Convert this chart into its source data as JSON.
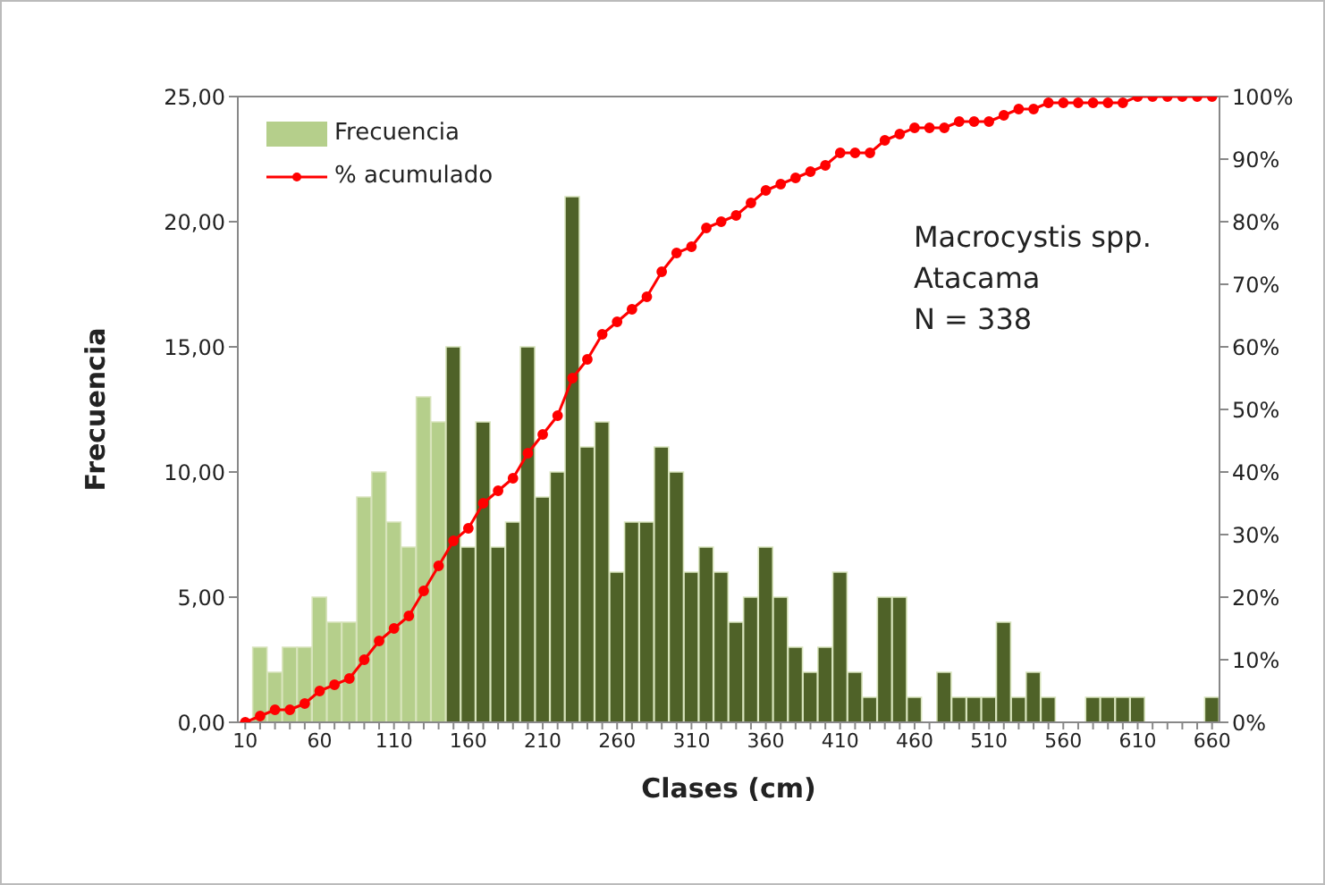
{
  "chart_data": {
    "type": "bar",
    "xlabel": "Clases (cm)",
    "ylabel": "Frecuencia",
    "categories": [
      "10",
      null,
      null,
      null,
      null,
      "60",
      null,
      null,
      null,
      null,
      "110",
      null,
      null,
      null,
      null,
      "160",
      null,
      null,
      null,
      null,
      "210",
      null,
      null,
      null,
      null,
      "260",
      null,
      null,
      null,
      null,
      "310",
      null,
      null,
      null,
      null,
      "360",
      null,
      null,
      null,
      null,
      "410",
      null,
      null,
      null,
      null,
      "460",
      null,
      null,
      null,
      null,
      "510",
      null,
      null,
      null,
      null,
      "560",
      null,
      null,
      null,
      null,
      "610",
      null,
      null,
      null,
      null,
      "660"
    ],
    "series": [
      {
        "name": "Frecuencia",
        "color": "#b5cf8b",
        "colors": [
          "#b5cf8b",
          "#b5cf8b",
          "#b5cf8b",
          "#b5cf8b",
          "#b5cf8b",
          "#b5cf8b",
          "#b5cf8b",
          "#b5cf8b",
          "#b5cf8b",
          "#b5cf8b",
          "#b5cf8b",
          "#b5cf8b",
          "#b5cf8b",
          "#b5cf8b",
          "#4f6228",
          "#4f6228",
          "#4f6228",
          "#4f6228",
          "#4f6228",
          "#4f6228",
          "#4f6228",
          "#4f6228",
          "#4f6228",
          "#4f6228",
          "#4f6228",
          "#4f6228",
          "#4f6228",
          "#4f6228",
          "#4f6228",
          "#4f6228",
          "#4f6228",
          "#4f6228",
          "#4f6228",
          "#4f6228",
          "#4f6228",
          "#4f6228",
          "#4f6228",
          "#4f6228",
          "#4f6228",
          "#4f6228",
          "#4f6228",
          "#4f6228",
          "#4f6228",
          "#4f6228",
          "#4f6228",
          "#4f6228",
          "#4f6228",
          "#4f6228",
          "#4f6228",
          "#4f6228",
          "#4f6228",
          "#4f6228",
          "#4f6228",
          "#4f6228",
          "#4f6228",
          "#4f6228",
          "#4f6228",
          "#4f6228",
          "#4f6228",
          "#4f6228",
          "#4f6228",
          "#4f6228",
          "#4f6228",
          "#4f6228",
          "#4f6228",
          "#4f6228"
        ],
        "values": [
          0,
          3,
          2,
          3,
          3,
          5,
          4,
          4,
          9,
          10,
          8,
          7,
          13,
          12,
          15,
          7,
          12,
          7,
          8,
          15,
          9,
          10,
          21,
          11,
          12,
          6,
          8,
          8,
          11,
          10,
          6,
          7,
          6,
          4,
          5,
          7,
          5,
          3,
          2,
          3,
          6,
          2,
          1,
          5,
          5,
          1,
          0,
          2,
          1,
          1,
          1,
          4,
          1,
          2,
          1,
          0,
          0,
          1,
          1,
          1,
          1,
          0,
          0,
          0,
          0,
          1
        ]
      },
      {
        "name": "% acumulado",
        "type": "line",
        "axis": "y2",
        "color": "#ff0000",
        "marker": "circle",
        "values": [
          0,
          1,
          2,
          2,
          3,
          5,
          6,
          7,
          10,
          13,
          15,
          17,
          21,
          25,
          29,
          31,
          35,
          37,
          39,
          43,
          46,
          49,
          55,
          58,
          62,
          64,
          66,
          68,
          72,
          75,
          76,
          79,
          80,
          81,
          83,
          85,
          86,
          87,
          88,
          89,
          91,
          91,
          91,
          93,
          94,
          95,
          95,
          95,
          96,
          96,
          96,
          97,
          98,
          98,
          99,
          99,
          99,
          99,
          99,
          99,
          100,
          100,
          100,
          100,
          100,
          100
        ]
      }
    ],
    "ylim": [
      0,
      25
    ],
    "yticks": [
      {
        "value": 0,
        "label": "0,00"
      },
      {
        "value": 5,
        "label": "5,00"
      },
      {
        "value": 10,
        "label": "10,00"
      },
      {
        "value": 15,
        "label": "15,00"
      },
      {
        "value": 20,
        "label": "20,00"
      },
      {
        "value": 25,
        "label": "25,00"
      }
    ],
    "y2lim": [
      0,
      100
    ],
    "y2ticks": [
      {
        "value": 0,
        "label": "0%"
      },
      {
        "value": 10,
        "label": "10%"
      },
      {
        "value": 20,
        "label": "20%"
      },
      {
        "value": 30,
        "label": "30%"
      },
      {
        "value": 40,
        "label": "40%"
      },
      {
        "value": 50,
        "label": "50%"
      },
      {
        "value": 60,
        "label": "60%"
      },
      {
        "value": 70,
        "label": "70%"
      },
      {
        "value": 80,
        "label": "80%"
      },
      {
        "value": 90,
        "label": "90%"
      },
      {
        "value": 100,
        "label": "100%"
      }
    ],
    "annotations": [
      "Macrocystis spp.",
      "Atacama",
      "N = 338"
    ],
    "legend": "top left"
  }
}
